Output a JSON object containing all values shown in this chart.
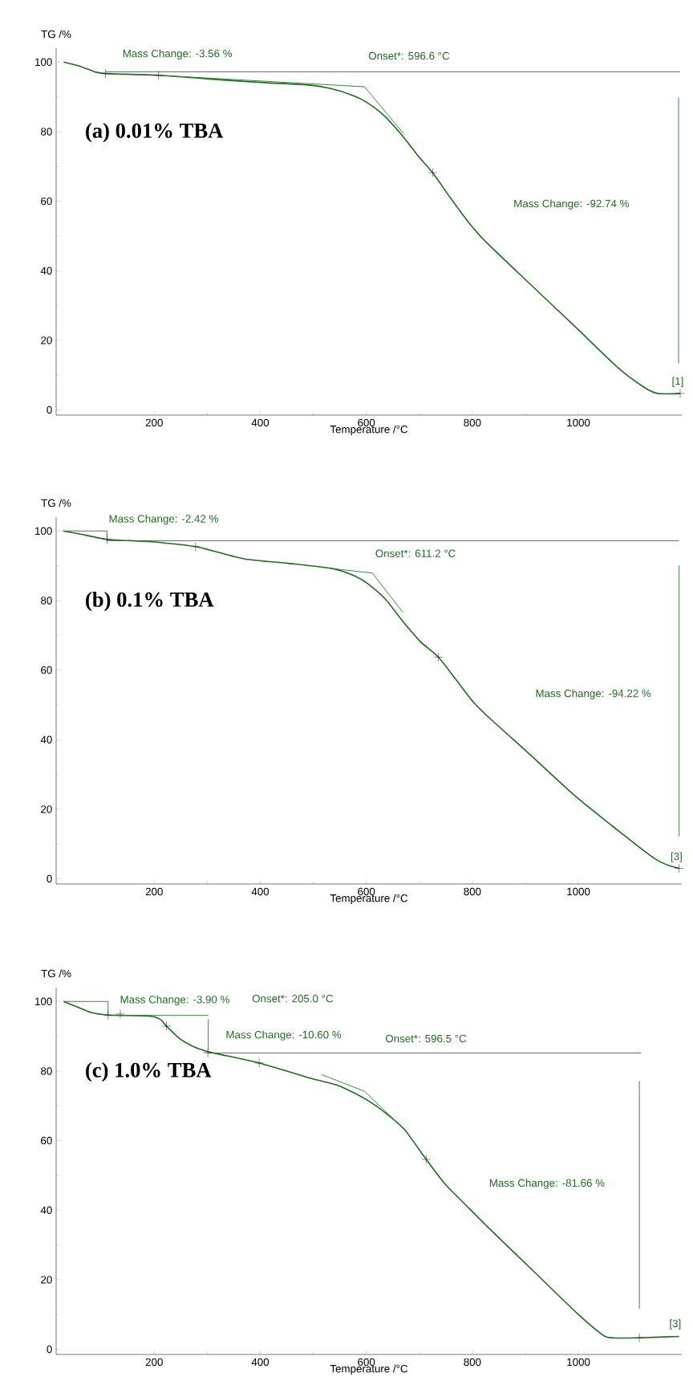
{
  "chart_data": [
    {
      "type": "line",
      "title": "(a) 0.01% TBA",
      "xlabel": "Temperature /°C",
      "ylabel": "TG /%",
      "xlim": [
        15,
        1195
      ],
      "ylim": [
        -1.5,
        104
      ],
      "xticks": [
        200,
        400,
        600,
        800,
        1000
      ],
      "yticks": [
        0,
        20,
        40,
        60,
        80,
        100
      ],
      "series": [
        {
          "type": "line",
          "color": "#1f6b1f",
          "x": [
            29,
            62,
            88,
            108,
            208,
            325,
            408,
            492,
            533,
            575,
            600,
            633,
            667,
            700,
            725,
            758,
            792,
            825,
            908,
            992,
            1075,
            1125,
            1150,
            1192
          ],
          "values": [
            100,
            98.7,
            97.2,
            96.7,
            96.2,
            94.9,
            94.1,
            93.4,
            92.4,
            90.4,
            88.5,
            84.7,
            79.0,
            72.6,
            68.2,
            61.1,
            54.1,
            48.4,
            36.3,
            24.2,
            12.1,
            6.4,
            4.7,
            4.7
          ]
        },
        {
          "type": "line",
          "color": "#2e7d32",
          "x": [
            108,
            1192
          ],
          "values": [
            97.2,
            97.2
          ]
        },
        {
          "type": "line",
          "color": "#2e7d32",
          "x": [
            208,
            596.6,
            670
          ],
          "values": [
            96.2,
            92.9,
            79.5
          ]
        },
        {
          "type": "line",
          "color": "#2e7d32",
          "x": [
            1189,
            1189
          ],
          "values": [
            89.8,
            13.4
          ]
        },
        {
          "type": "scatter",
          "marker": "cross",
          "color": "#1a1a1a",
          "x": [
            108,
            208,
            725,
            1192
          ],
          "values": [
            96.7,
            96.2,
            68.2,
            4.7
          ]
        }
      ],
      "annotations": [
        "Mass Change: -3.56 %",
        "Onset*: 596.6 °C",
        "Mass Change: -92.74 %",
        "[1]"
      ]
    },
    {
      "type": "line",
      "title": "(b) 0.1% TBA",
      "xlabel": "Temperature /°C",
      "ylabel": "TG /%",
      "xlim": [
        15,
        1195
      ],
      "ylim": [
        -1.5,
        104
      ],
      "xticks": [
        200,
        400,
        600,
        800,
        1000
      ],
      "yticks": [
        0,
        20,
        40,
        60,
        80,
        100
      ],
      "series": [
        {
          "type": "line",
          "color": "#1f6b1f",
          "x": [
            28,
            61,
            111,
            194,
            278,
            369,
            453,
            536,
            578,
            602,
            636,
            669,
            702,
            736,
            769,
            802,
            836,
            911,
            994,
            1078,
            1144,
            1169,
            1190
          ],
          "values": [
            100,
            99.1,
            97.6,
            96.9,
            95.5,
            92.0,
            90.7,
            89.2,
            87.1,
            84.9,
            80.4,
            74.0,
            68.2,
            63.7,
            57.3,
            50.8,
            45.7,
            35.4,
            23.8,
            13.5,
            5.8,
            3.9,
            3.0
          ]
        },
        {
          "type": "line",
          "color": "#2e7d32",
          "x": [
            28,
            111,
            111,
            1190
          ],
          "values": [
            100,
            100,
            97.2,
            97.2
          ]
        },
        {
          "type": "line",
          "color": "#2e7d32",
          "x": [
            536,
            611.2,
            669
          ],
          "values": [
            89.2,
            87.9,
            76.6
          ]
        },
        {
          "type": "line",
          "color": "#2e7d32",
          "x": [
            1190,
            1190
          ],
          "values": [
            90.1,
            12.2
          ]
        },
        {
          "type": "scatter",
          "marker": "cross",
          "color": "#1a1a1a",
          "x": [
            111,
            278,
            736,
            1190
          ],
          "values": [
            97.6,
            95.5,
            63.7,
            3.0
          ]
        }
      ],
      "annotations": [
        "Mass Change: -2.42 %",
        "Onset*: 611.2 °C",
        "Mass Change: -94.22 %",
        "[3]"
      ]
    },
    {
      "type": "line",
      "title": "(c) 1.0% TBA",
      "xlabel": "Temperature /°C",
      "ylabel": "TG /%",
      "xlim": [
        15,
        1195
      ],
      "ylim": [
        -1.5,
        104
      ],
      "xticks": [
        200,
        400,
        600,
        800,
        1000
      ],
      "yticks": [
        0,
        20,
        40,
        60,
        80,
        100
      ],
      "series": [
        {
          "type": "line",
          "color": "#1f6b1f",
          "x": [
            29,
            57,
            82,
            115,
            190,
            211,
            223,
            248,
            273,
            303,
            398,
            498,
            548,
            598,
            640,
            673,
            713,
            748,
            790,
            832,
            915,
            998,
            1048,
            1065,
            1115,
            1190
          ],
          "values": [
            100,
            98.3,
            96.8,
            96.1,
            95.8,
            94.9,
            92.9,
            89.3,
            87.1,
            85.5,
            82.3,
            77.8,
            75.8,
            72.0,
            67.5,
            63.0,
            54.6,
            47.6,
            41.1,
            34.7,
            22.5,
            10.3,
            3.9,
            3.3,
            3.3,
            3.7
          ]
        },
        {
          "type": "line",
          "color": "#2e7d32",
          "x": [
            29,
            113,
            113,
            302
          ],
          "values": [
            100,
            100,
            96.0,
            96.0
          ]
        },
        {
          "type": "line",
          "color": "#2e7d32",
          "x": [
            302,
            302
          ],
          "values": [
            94.9,
            86.1
          ]
        },
        {
          "type": "line",
          "color": "#2e7d32",
          "x": [
            302,
            1118
          ],
          "values": [
            85.2,
            85.2
          ]
        },
        {
          "type": "line",
          "color": "#2e7d32",
          "x": [
            515,
            596.5,
            669
          ],
          "values": [
            79.0,
            74.2,
            63.6
          ]
        },
        {
          "type": "line",
          "color": "#2e7d32",
          "x": [
            1115,
            1115
          ],
          "values": [
            77.1,
            11.6
          ]
        },
        {
          "type": "scatter",
          "marker": "cross",
          "color": "#1a1a1a",
          "x": [
            113,
            136,
            223,
            301,
            398,
            713,
            1115
          ],
          "values": [
            96.0,
            96.4,
            92.9,
            85.2,
            82.3,
            54.6,
            3.3
          ]
        }
      ],
      "annotations": [
        "Mass Change: -3.90 %",
        "Onset*: 205.0 °C",
        "Mass Change: -10.60 %",
        "Onset*: 596.5 °C",
        "Mass Change: -81.66 %",
        "[3]"
      ]
    }
  ]
}
